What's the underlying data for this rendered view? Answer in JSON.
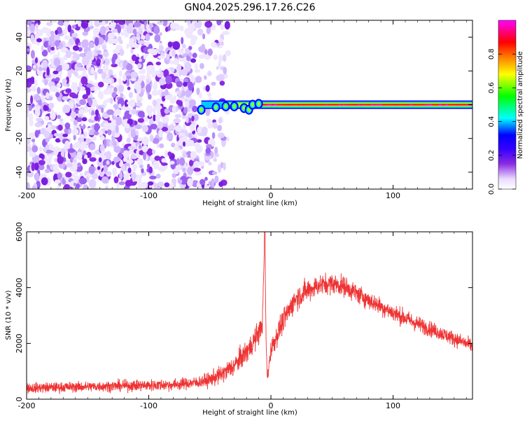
{
  "title": "GN04.2025.296.17.26.C26",
  "chart_data": [
    {
      "type": "heatmap",
      "xlabel": "Height of straight line (km)",
      "ylabel": "Frequency (Hz)",
      "xlim": [
        -200,
        165
      ],
      "ylim": [
        -50,
        50
      ],
      "xticks": [
        -200,
        -100,
        0,
        100
      ],
      "yticks": [
        -40,
        -20,
        0,
        20,
        40
      ],
      "grid": false,
      "colorbar": {
        "label": "Normalized spectral amplitude",
        "range": [
          0,
          1
        ],
        "ticks": [
          0.0,
          0.2,
          0.4,
          0.6,
          0.8
        ],
        "colormap": [
          "#ffffff",
          "#e9dcff",
          "#8a2be2",
          "#3300ff",
          "#0000ff",
          "#00ffff",
          "#00ff00",
          "#ffff00",
          "#ff7f00",
          "#ff0000",
          "#ff00ff"
        ]
      },
      "noise_region_x": [
        -200,
        -45
      ],
      "noise_amplitude": 0.15,
      "signal_line": {
        "frequency": 0,
        "x_range": [
          -57,
          165
        ],
        "peak_amplitude": 1.0,
        "onset_points": [
          {
            "x": -57,
            "freq": -3
          },
          {
            "x": -45,
            "freq": -1.5
          },
          {
            "x": -37,
            "freq": -1
          },
          {
            "x": -30,
            "freq": -1
          },
          {
            "x": -22,
            "freq": -2
          },
          {
            "x": -18,
            "freq": -3
          },
          {
            "x": -15,
            "freq": 0
          },
          {
            "x": -10,
            "freq": 0.5
          }
        ]
      }
    },
    {
      "type": "line",
      "xlabel": "Height of straight line (km)",
      "ylabel": "SNR (10 * v/v)",
      "xlim": [
        -200,
        165
      ],
      "ylim": [
        0,
        6000
      ],
      "xticks": [
        -200,
        -100,
        0,
        100
      ],
      "yticks": [
        0,
        2000,
        4000,
        6000
      ],
      "grid": false,
      "color": "#ee3333",
      "series": [
        {
          "x": [
            -200,
            -150,
            -100,
            -80,
            -60,
            -50,
            -40,
            -30,
            -20,
            -15,
            -10,
            -7,
            -5,
            -4,
            -3,
            0,
            10,
            20,
            30,
            40,
            50,
            60,
            70,
            80,
            100,
            120,
            140,
            165
          ],
          "y": [
            400,
            450,
            500,
            520,
            600,
            700,
            900,
            1200,
            1700,
            2000,
            2400,
            2700,
            6000,
            2200,
            700,
            1800,
            2800,
            3600,
            3900,
            4100,
            4150,
            4050,
            3800,
            3550,
            3100,
            2700,
            2350,
            1900
          ],
          "noise_band": [
            350,
            350,
            400,
            400,
            400,
            500,
            600,
            700,
            800,
            800,
            800,
            600,
            0,
            400,
            300,
            700,
            800,
            800,
            800,
            700,
            700,
            700,
            650,
            600,
            600,
            550,
            500,
            500
          ]
        }
      ]
    }
  ]
}
